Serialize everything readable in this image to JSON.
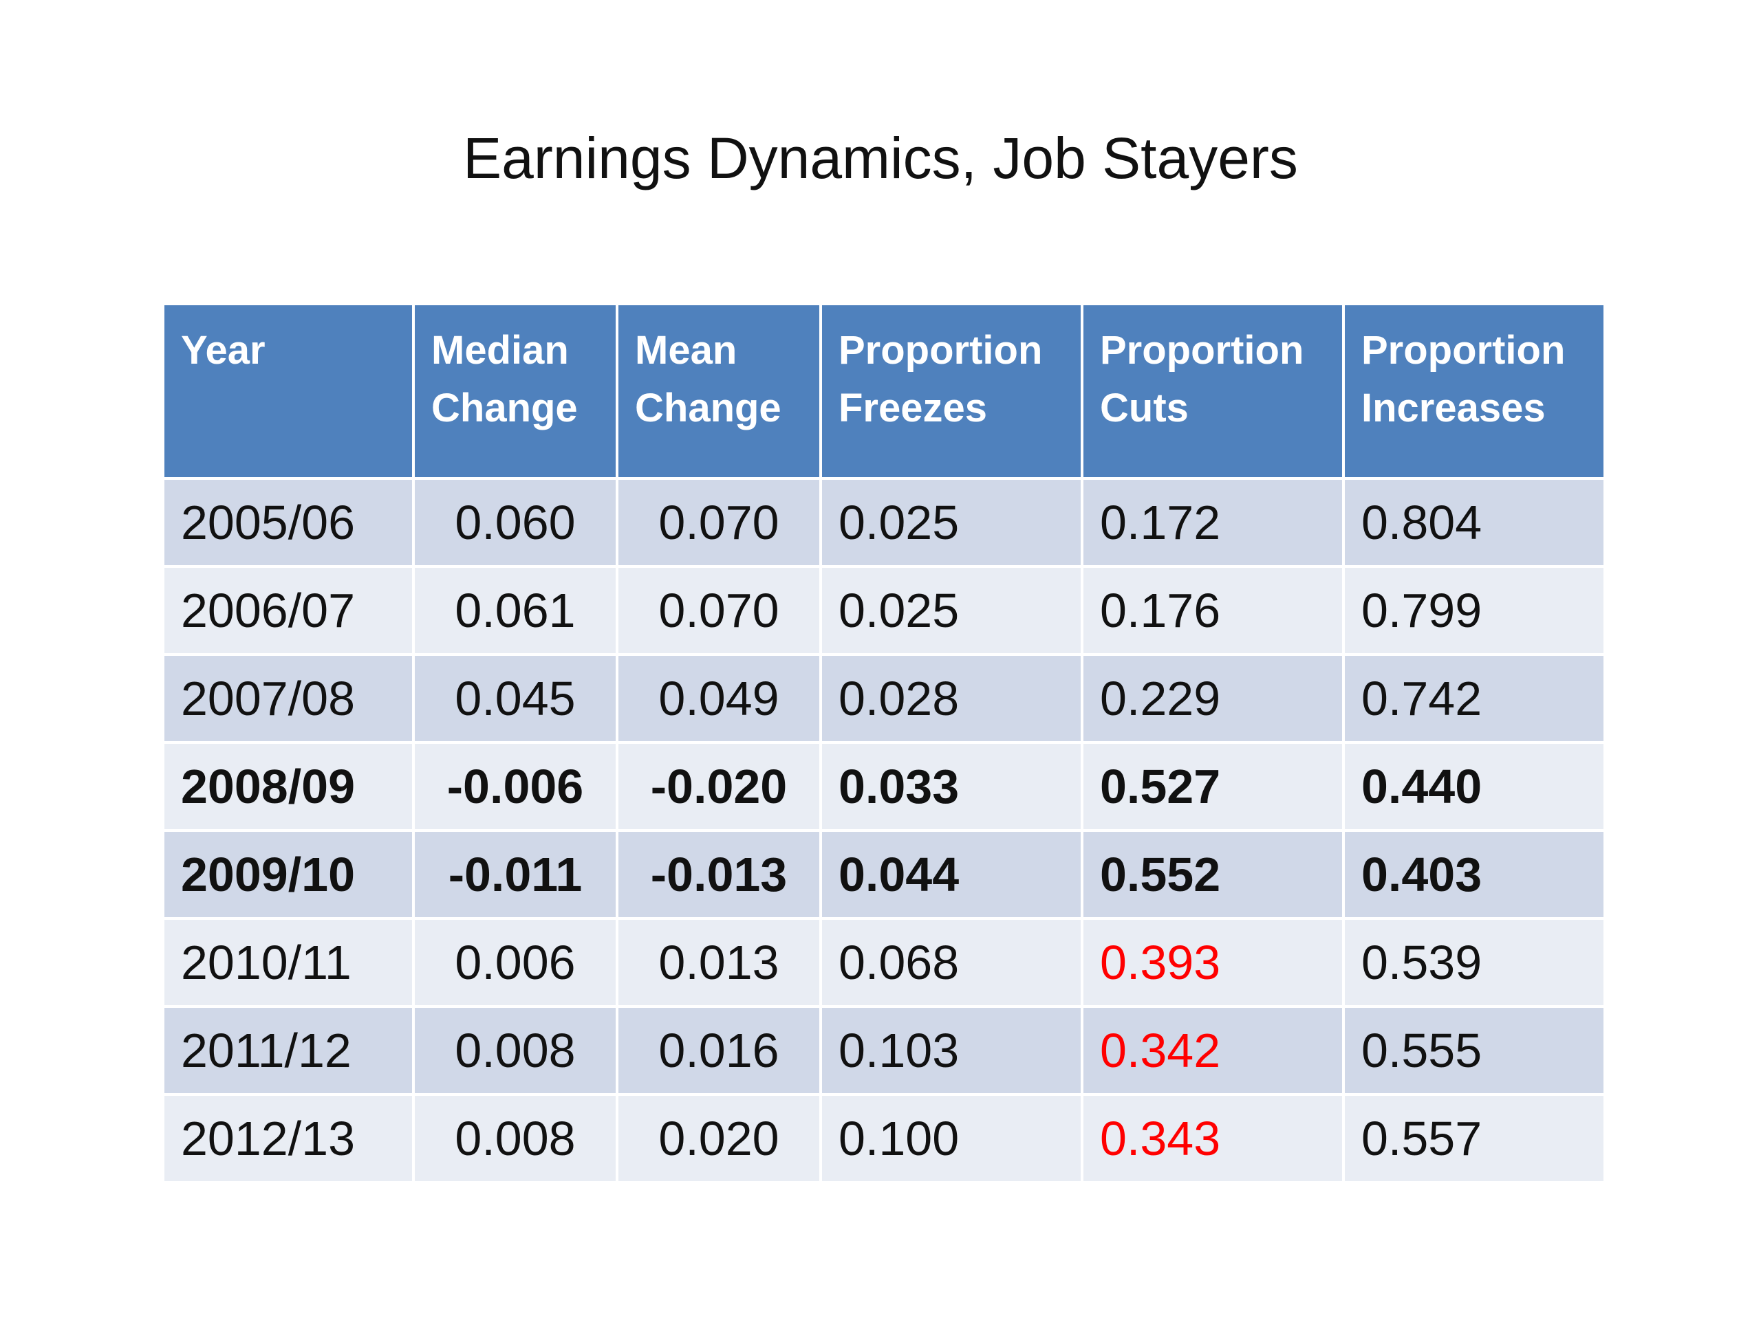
{
  "title": "Earnings Dynamics, Job Stayers",
  "table": {
    "headers": [
      [
        "Year"
      ],
      [
        "Median",
        "Change"
      ],
      [
        "Mean",
        "Change"
      ],
      [
        "Proportion",
        "Freezes"
      ],
      [
        "Proportion",
        "Cuts"
      ],
      [
        "Proportion",
        "Increases"
      ]
    ],
    "rows": [
      {
        "year": "2005/06",
        "median": "0.060",
        "mean": "0.070",
        "freezes": "0.025",
        "cuts": "0.172",
        "increases": "0.804"
      },
      {
        "year": "2006/07",
        "median": "0.061",
        "mean": "0.070",
        "freezes": "0.025",
        "cuts": "0.176",
        "increases": "0.799"
      },
      {
        "year": "2007/08",
        "median": "0.045",
        "mean": "0.049",
        "freezes": "0.028",
        "cuts": "0.229",
        "increases": "0.742"
      },
      {
        "year": "2008/09",
        "median": "-0.006",
        "mean": "-0.020",
        "freezes": "0.033",
        "cuts": "0.527",
        "increases": "0.440"
      },
      {
        "year": "2009/10",
        "median": "-0.011",
        "mean": "-0.013",
        "freezes": "0.044",
        "cuts": "0.552",
        "increases": "0.403"
      },
      {
        "year": "2010/11",
        "median": "0.006",
        "mean": "0.013",
        "freezes": "0.068",
        "cuts": "0.393",
        "increases": "0.539"
      },
      {
        "year": "2011/12",
        "median": "0.008",
        "mean": "0.016",
        "freezes": "0.103",
        "cuts": "0.342",
        "increases": "0.555"
      },
      {
        "year": "2012/13",
        "median": "0.008",
        "mean": "0.020",
        "freezes": "0.100",
        "cuts": "0.343",
        "increases": "0.557"
      }
    ],
    "bold_rows": [
      "2008/09",
      "2009/10"
    ],
    "highlighted_cuts_rows": [
      "2010/11",
      "2011/12",
      "2012/13"
    ]
  },
  "colors": {
    "header_fill": "#4f81bd",
    "row_band_dark": "#d0d8e8",
    "row_band_light": "#e9edf4",
    "highlight_text": "#ff0000"
  }
}
